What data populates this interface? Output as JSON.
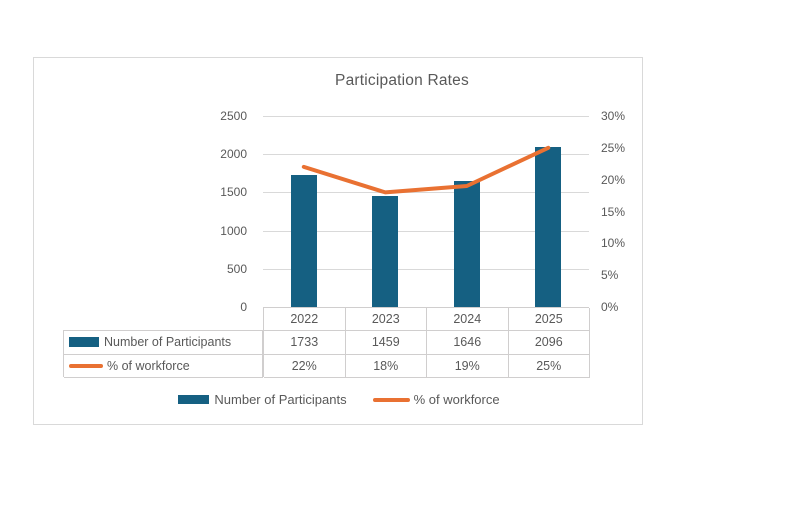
{
  "chart_data": {
    "type": "bar",
    "subtype": "combo-bar-line-dual-axis",
    "title": "Participation Rates",
    "categories": [
      "2022",
      "2023",
      "2024",
      "2025"
    ],
    "series": [
      {
        "name": "Number of Participants",
        "type": "bar",
        "axis": "left",
        "color": "#156082",
        "values": [
          1733,
          1459,
          1646,
          2096
        ],
        "display_values": [
          "1733",
          "1459",
          "1646",
          "2096"
        ]
      },
      {
        "name": "% of workforce",
        "type": "line",
        "axis": "right",
        "color": "#E97132",
        "values": [
          22,
          18,
          19,
          25
        ],
        "display_values": [
          "22%",
          "18%",
          "19%",
          "25%"
        ]
      }
    ],
    "left_axis": {
      "min": 0,
      "max": 2500,
      "step": 500,
      "tick_labels": [
        "0",
        "500",
        "1000",
        "1500",
        "2000",
        "2500"
      ]
    },
    "right_axis": {
      "min": 0,
      "max": 30,
      "step": 5,
      "tick_labels": [
        "0%",
        "5%",
        "10%",
        "15%",
        "20%",
        "25%",
        "30%"
      ]
    },
    "gridlines": true,
    "legend_position": "bottom",
    "data_table_shown": true
  },
  "colors": {
    "bar": "#156082",
    "line": "#E97132",
    "text": "#595959",
    "gridline": "#d9d9d9",
    "table_border": "#d0cece",
    "frame_border": "#d9d9d9"
  }
}
